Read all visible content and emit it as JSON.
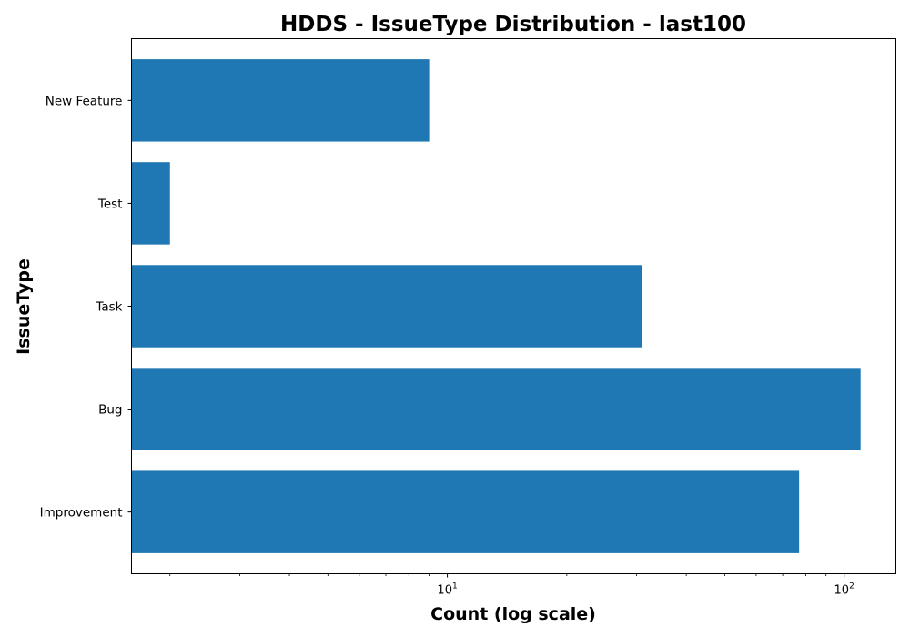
{
  "chart_data": {
    "type": "bar",
    "orientation": "horizontal",
    "title": "HDDS - IssueType Distribution - last100",
    "xlabel": "Count (log scale)",
    "ylabel": "IssueType",
    "xscale": "log",
    "xlim": [
      1.6,
      135
    ],
    "categories": [
      "Improvement",
      "Bug",
      "Task",
      "Test",
      "New Feature"
    ],
    "values": [
      77,
      110,
      31,
      2,
      9
    ],
    "bar_color": "#1f77b4",
    "grid": false,
    "legend": "none",
    "xticks": [
      {
        "base": "10",
        "exp": "1",
        "value": 10
      },
      {
        "base": "10",
        "exp": "2",
        "value": 100
      }
    ]
  }
}
